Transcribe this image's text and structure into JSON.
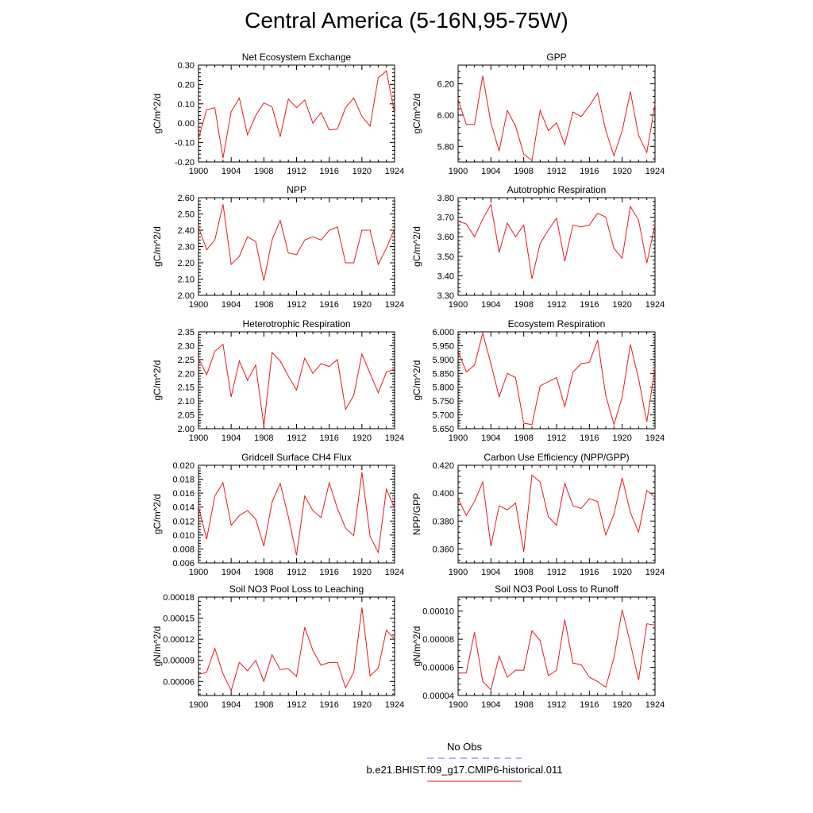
{
  "page": {
    "title": "Central America (5-16N,95-75W)"
  },
  "colors": {
    "series": "#e41a1c",
    "obs": "#6a6ad8",
    "axis": "#000000"
  },
  "legend": {
    "obs_label": "No Obs",
    "model_label": "b.e21.BHIST.f09_g17.CMIP6-historical.011"
  },
  "chart_data": [
    {
      "type": "line",
      "title": "Net Ecosystem Exchange",
      "ylabel": "gC/m^2/d",
      "ylim": [
        -0.2,
        0.3
      ],
      "yticks": [
        -0.2,
        -0.1,
        0.0,
        0.1,
        0.2,
        0.3
      ],
      "yticklabels": [
        "-0.20",
        "-0.10",
        "0.00",
        "0.10",
        "0.20",
        "0.30"
      ],
      "xlim": [
        1900,
        1924
      ],
      "xticks": [
        1900,
        1904,
        1908,
        1912,
        1916,
        1920,
        1924
      ],
      "x": [
        1900,
        1901,
        1902,
        1903,
        1904,
        1905,
        1906,
        1907,
        1908,
        1909,
        1910,
        1911,
        1912,
        1913,
        1914,
        1915,
        1916,
        1917,
        1918,
        1919,
        1920,
        1921,
        1922,
        1923,
        1924
      ],
      "series": [
        {
          "values": [
            -0.08,
            0.07,
            0.08,
            -0.18,
            0.06,
            0.13,
            -0.06,
            0.04,
            0.105,
            0.085,
            -0.07,
            0.125,
            0.08,
            0.12,
            0.0,
            0.055,
            -0.035,
            -0.03,
            0.08,
            0.13,
            0.035,
            -0.015,
            0.235,
            0.27,
            0.05
          ]
        }
      ]
    },
    {
      "type": "line",
      "title": "GPP",
      "ylabel": "gC/m^2/d",
      "ylim": [
        5.7,
        6.32
      ],
      "yticks": [
        5.8,
        6.0,
        6.2
      ],
      "yticklabels": [
        "5.80",
        "6.00",
        "6.20"
      ],
      "xlim": [
        1900,
        1924
      ],
      "xticks": [
        1900,
        1904,
        1908,
        1912,
        1916,
        1920,
        1924
      ],
      "x": [
        1900,
        1901,
        1902,
        1903,
        1904,
        1905,
        1906,
        1907,
        1908,
        1909,
        1910,
        1911,
        1912,
        1913,
        1914,
        1915,
        1916,
        1917,
        1918,
        1919,
        1920,
        1921,
        1922,
        1923,
        1924
      ],
      "series": [
        {
          "values": [
            6.1,
            5.94,
            5.94,
            6.25,
            5.95,
            5.77,
            6.03,
            5.93,
            5.75,
            5.71,
            6.03,
            5.9,
            5.95,
            5.81,
            6.02,
            5.99,
            6.06,
            6.14,
            5.9,
            5.74,
            5.9,
            6.15,
            5.87,
            5.76,
            6.07
          ]
        }
      ]
    },
    {
      "type": "line",
      "title": "NPP",
      "ylabel": "gC/m^2/d",
      "ylim": [
        2.0,
        2.6
      ],
      "yticks": [
        2.0,
        2.1,
        2.2,
        2.3,
        2.4,
        2.5,
        2.6
      ],
      "yticklabels": [
        "2.00",
        "2.10",
        "2.20",
        "2.30",
        "2.40",
        "2.50",
        "2.60"
      ],
      "xlim": [
        1900,
        1924
      ],
      "xticks": [
        1900,
        1904,
        1908,
        1912,
        1916,
        1920,
        1924
      ],
      "x": [
        1900,
        1901,
        1902,
        1903,
        1904,
        1905,
        1906,
        1907,
        1908,
        1909,
        1910,
        1911,
        1912,
        1913,
        1914,
        1915,
        1916,
        1917,
        1918,
        1919,
        1920,
        1921,
        1922,
        1923,
        1924
      ],
      "series": [
        {
          "values": [
            2.42,
            2.28,
            2.34,
            2.56,
            2.19,
            2.24,
            2.36,
            2.33,
            2.09,
            2.34,
            2.46,
            2.26,
            2.25,
            2.34,
            2.36,
            2.34,
            2.4,
            2.42,
            2.2,
            2.2,
            2.4,
            2.4,
            2.19,
            2.29,
            2.41
          ]
        }
      ]
    },
    {
      "type": "line",
      "title": "Autotrophic Respiration",
      "ylabel": "gC/m^2/d",
      "ylim": [
        3.3,
        3.8
      ],
      "yticks": [
        3.3,
        3.4,
        3.5,
        3.6,
        3.7,
        3.8
      ],
      "yticklabels": [
        "3.30",
        "3.40",
        "3.50",
        "3.60",
        "3.70",
        "3.80"
      ],
      "xlim": [
        1900,
        1924
      ],
      "xticks": [
        1900,
        1904,
        1908,
        1912,
        1916,
        1920,
        1924
      ],
      "x": [
        1900,
        1901,
        1902,
        1903,
        1904,
        1905,
        1906,
        1907,
        1908,
        1909,
        1910,
        1911,
        1912,
        1913,
        1914,
        1915,
        1916,
        1917,
        1918,
        1919,
        1920,
        1921,
        1922,
        1923,
        1924
      ],
      "series": [
        {
          "values": [
            3.68,
            3.665,
            3.6,
            3.69,
            3.765,
            3.52,
            3.67,
            3.6,
            3.66,
            3.385,
            3.565,
            3.635,
            3.695,
            3.475,
            3.66,
            3.65,
            3.66,
            3.72,
            3.7,
            3.54,
            3.49,
            3.755,
            3.685,
            3.465,
            3.66
          ]
        }
      ]
    },
    {
      "type": "line",
      "title": "Heterotrophic Respiration",
      "ylabel": "gC/m^2/d",
      "ylim": [
        2.0,
        2.35
      ],
      "yticks": [
        2.0,
        2.05,
        2.1,
        2.15,
        2.2,
        2.25,
        2.3,
        2.35
      ],
      "yticklabels": [
        "2.00",
        "2.05",
        "2.10",
        "2.15",
        "2.20",
        "2.25",
        "2.30",
        "2.35"
      ],
      "xlim": [
        1900,
        1924
      ],
      "xticks": [
        1900,
        1904,
        1908,
        1912,
        1916,
        1920,
        1924
      ],
      "x": [
        1900,
        1901,
        1902,
        1903,
        1904,
        1905,
        1906,
        1907,
        1908,
        1909,
        1910,
        1911,
        1912,
        1913,
        1914,
        1915,
        1916,
        1917,
        1918,
        1919,
        1920,
        1921,
        1922,
        1923,
        1924
      ],
      "series": [
        {
          "values": [
            2.255,
            2.195,
            2.28,
            2.305,
            2.115,
            2.245,
            2.175,
            2.23,
            2.01,
            2.275,
            2.245,
            2.19,
            2.14,
            2.255,
            2.2,
            2.235,
            2.225,
            2.25,
            2.07,
            2.12,
            2.27,
            2.2,
            2.13,
            2.205,
            2.215
          ]
        }
      ]
    },
    {
      "type": "line",
      "title": "Ecosystem Respiration",
      "ylabel": "gC/m^2/d",
      "ylim": [
        5.65,
        6.0
      ],
      "yticks": [
        5.65,
        5.7,
        5.75,
        5.8,
        5.85,
        5.9,
        5.95,
        6.0
      ],
      "yticklabels": [
        "5.650",
        "5.700",
        "5.750",
        "5.800",
        "5.850",
        "5.900",
        "5.950",
        "6.000"
      ],
      "xlim": [
        1900,
        1924
      ],
      "xticks": [
        1900,
        1904,
        1908,
        1912,
        1916,
        1920,
        1924
      ],
      "x": [
        1900,
        1901,
        1902,
        1903,
        1904,
        1905,
        1906,
        1907,
        1908,
        1909,
        1910,
        1911,
        1912,
        1913,
        1914,
        1915,
        1916,
        1917,
        1918,
        1919,
        1920,
        1921,
        1922,
        1923,
        1924
      ],
      "series": [
        {
          "values": [
            5.93,
            5.855,
            5.88,
            5.995,
            5.885,
            5.765,
            5.85,
            5.835,
            5.67,
            5.665,
            5.805,
            5.82,
            5.835,
            5.73,
            5.855,
            5.885,
            5.89,
            5.97,
            5.77,
            5.665,
            5.765,
            5.955,
            5.83,
            5.675,
            5.87
          ]
        }
      ]
    },
    {
      "type": "line",
      "title": "Gridcell Surface CH4 Flux",
      "ylabel": "gC/m^2/d",
      "ylim": [
        0.006,
        0.02
      ],
      "yticks": [
        0.006,
        0.008,
        0.01,
        0.012,
        0.014,
        0.016,
        0.018,
        0.02
      ],
      "yticklabels": [
        "0.006",
        "0.008",
        "0.010",
        "0.012",
        "0.014",
        "0.016",
        "0.018",
        "0.020"
      ],
      "xlim": [
        1900,
        1924
      ],
      "xticks": [
        1900,
        1904,
        1908,
        1912,
        1916,
        1920,
        1924
      ],
      "x": [
        1900,
        1901,
        1902,
        1903,
        1904,
        1905,
        1906,
        1907,
        1908,
        1909,
        1910,
        1911,
        1912,
        1913,
        1914,
        1915,
        1916,
        1917,
        1918,
        1919,
        1920,
        1921,
        1922,
        1923,
        1924
      ],
      "series": [
        {
          "values": [
            0.0141,
            0.0094,
            0.0156,
            0.0175,
            0.0114,
            0.0128,
            0.0135,
            0.0123,
            0.0084,
            0.0147,
            0.0174,
            0.0126,
            0.0071,
            0.0156,
            0.0135,
            0.0125,
            0.0175,
            0.0138,
            0.011,
            0.0099,
            0.019,
            0.0098,
            0.0075,
            0.0166,
            0.0138
          ]
        }
      ]
    },
    {
      "type": "line",
      "title": "Carbon Use Efficiency (NPP/GPP)",
      "ylabel": "NPP/GPP",
      "ylim": [
        0.35,
        0.42
      ],
      "yticks": [
        0.36,
        0.38,
        0.4,
        0.42
      ],
      "yticklabels": [
        "0.360",
        "0.380",
        "0.400",
        "0.420"
      ],
      "xlim": [
        1900,
        1924
      ],
      "xticks": [
        1900,
        1904,
        1908,
        1912,
        1916,
        1920,
        1924
      ],
      "x": [
        1900,
        1901,
        1902,
        1903,
        1904,
        1905,
        1906,
        1907,
        1908,
        1909,
        1910,
        1911,
        1912,
        1913,
        1914,
        1915,
        1916,
        1917,
        1918,
        1919,
        1920,
        1921,
        1922,
        1923,
        1924
      ],
      "series": [
        {
          "values": [
            0.396,
            0.384,
            0.394,
            0.408,
            0.362,
            0.391,
            0.388,
            0.393,
            0.358,
            0.413,
            0.408,
            0.383,
            0.377,
            0.407,
            0.391,
            0.389,
            0.396,
            0.394,
            0.37,
            0.385,
            0.411,
            0.386,
            0.372,
            0.402,
            0.397
          ]
        }
      ]
    },
    {
      "type": "line",
      "title": "Soil NO3 Pool Loss to Leaching",
      "ylabel": "gN/m^2/d",
      "ylim": [
        4e-05,
        0.00018
      ],
      "yticks": [
        6e-05,
        9e-05,
        0.00012,
        0.00015,
        0.00018
      ],
      "yticklabels": [
        "0.00006",
        "0.00009",
        "0.00012",
        "0.00015",
        "0.00018"
      ],
      "xlim": [
        1900,
        1924
      ],
      "xticks": [
        1900,
        1904,
        1908,
        1912,
        1916,
        1920,
        1924
      ],
      "x": [
        1900,
        1901,
        1902,
        1903,
        1904,
        1905,
        1906,
        1907,
        1908,
        1909,
        1910,
        1911,
        1912,
        1913,
        1914,
        1915,
        1916,
        1917,
        1918,
        1919,
        1920,
        1921,
        1922,
        1923,
        1924
      ],
      "series": [
        {
          "values": [
            7e-05,
            7.3e-05,
            0.000107,
            7.1e-05,
            4.7e-05,
            8.7e-05,
            7.5e-05,
            9e-05,
            6e-05,
            9.8e-05,
            7.7e-05,
            7.8e-05,
            6.7e-05,
            0.000137,
            0.000104,
            8.3e-05,
            8.7e-05,
            8.7e-05,
            5.1e-05,
            7.3e-05,
            0.000165,
            6.8e-05,
            7.9e-05,
            0.000133,
            0.00012
          ]
        }
      ]
    },
    {
      "type": "line",
      "title": "Soil NO3 Pool Loss to Runoff",
      "ylabel": "gN/m^2/d",
      "ylim": [
        4e-05,
        0.00011
      ],
      "yticks": [
        4e-05,
        6e-05,
        8e-05,
        0.0001
      ],
      "yticklabels": [
        "0.00004",
        "0.00006",
        "0.00008",
        "0.00010"
      ],
      "xlim": [
        1900,
        1924
      ],
      "xticks": [
        1900,
        1904,
        1908,
        1912,
        1916,
        1920,
        1924
      ],
      "x": [
        1900,
        1901,
        1902,
        1903,
        1904,
        1905,
        1906,
        1907,
        1908,
        1909,
        1910,
        1911,
        1912,
        1913,
        1914,
        1915,
        1916,
        1917,
        1918,
        1919,
        1920,
        1921,
        1922,
        1923,
        1924
      ],
      "series": [
        {
          "values": [
            5.6e-05,
            5.6e-05,
            8.5e-05,
            5e-05,
            4.4e-05,
            6.8e-05,
            5.3e-05,
            5.8e-05,
            5.8e-05,
            8.6e-05,
            7.9e-05,
            5.4e-05,
            5.8e-05,
            9.4e-05,
            6.3e-05,
            6.2e-05,
            5.3e-05,
            5e-05,
            4.6e-05,
            6.7e-05,
            0.000101,
            7.7e-05,
            5.1e-05,
            9.1e-05,
            9e-05
          ]
        }
      ]
    }
  ]
}
